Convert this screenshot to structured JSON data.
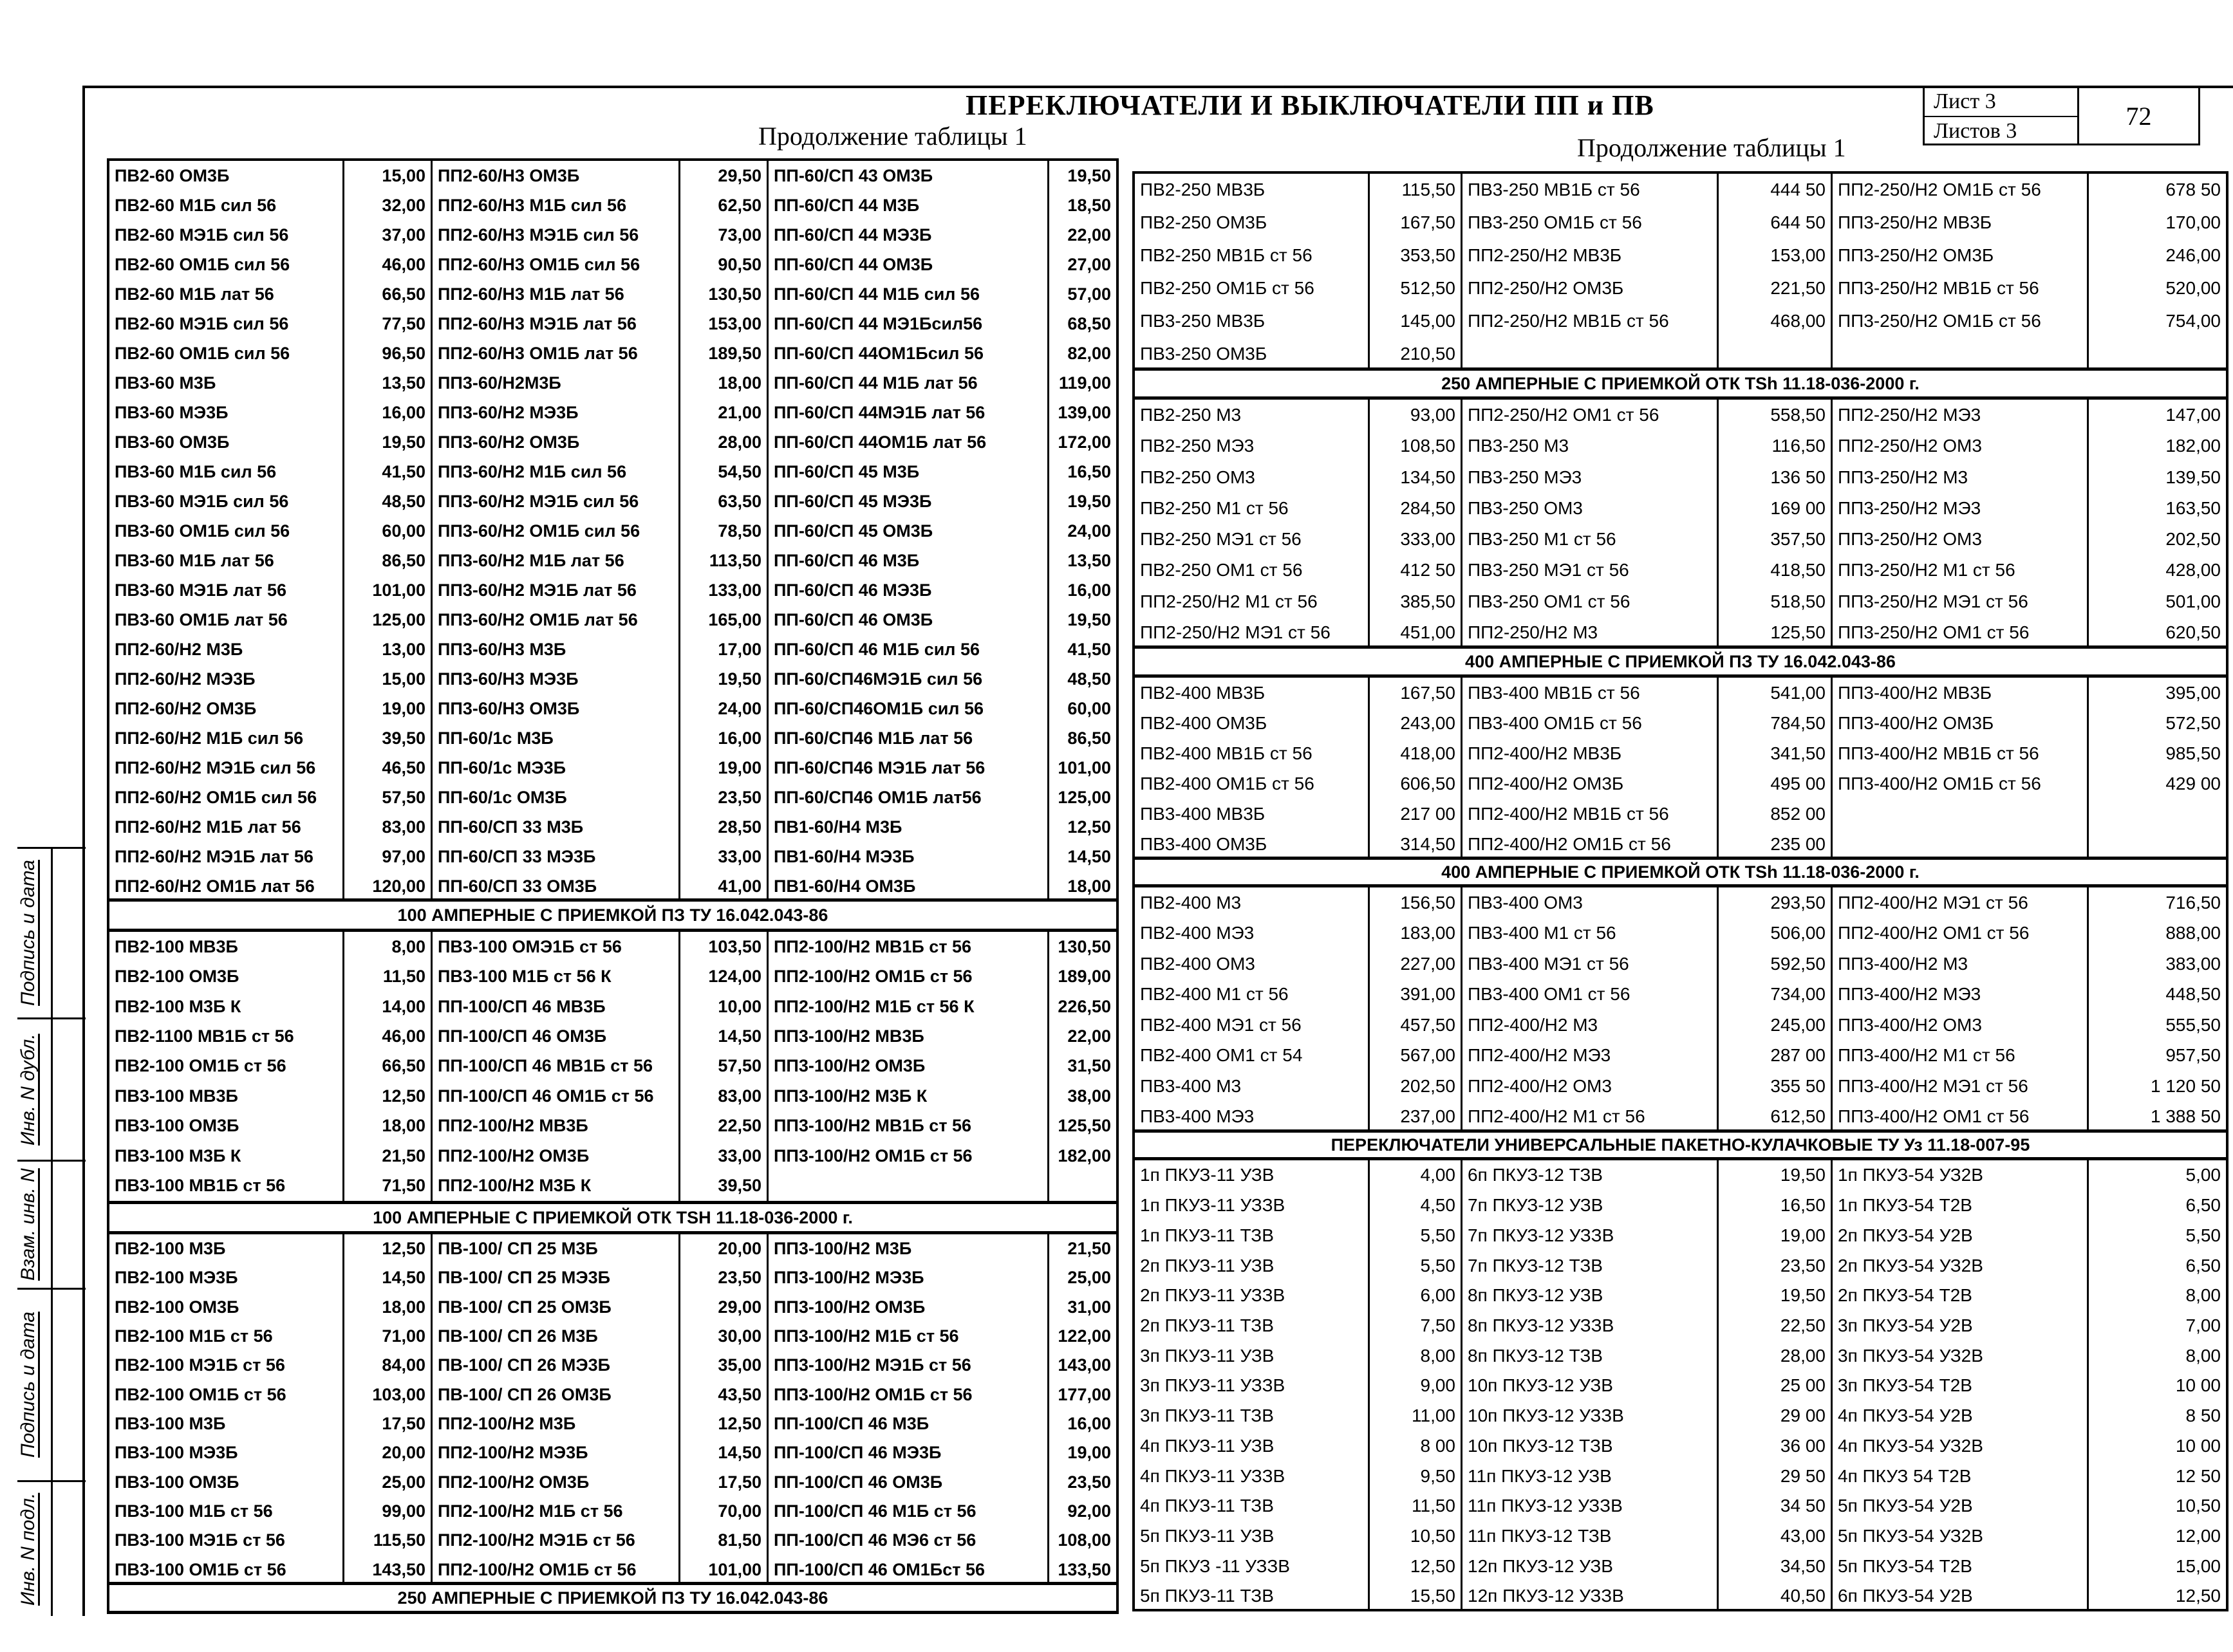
{
  "header": {
    "title": "ПЕРЕКЛЮЧАТЕЛИ И ВЫКЛЮЧАТЕЛИ ПП и ПВ",
    "continuation_left": "Продолжение таблицы 1",
    "continuation_right": "Продолжение таблицы 1",
    "sheet_label": "Лист  3",
    "sheets_label": "Листов  3",
    "page_number": "72"
  },
  "stamp": [
    "Подпись и дата",
    "Инв. N дубл.",
    "Взам. инв. N",
    "Подпись и дата",
    "Инв. N подл."
  ],
  "left": [
    {
      "header": "",
      "rows": [
        [
          "ПВ2-60 ОМ3Б",
          "15,00",
          "ПП2-60/Н3 ОМ3Б",
          "29,50",
          "ПП-60/СП 43 ОМ3Б",
          "19,50"
        ],
        [
          "ПВ2-60 М1Б сил 56",
          "32,00",
          "ПП2-60/Н3 М1Б сил 56",
          "62,50",
          "ПП-60/СП 44 М3Б",
          "18,50"
        ],
        [
          "ПВ2-60 МЭ1Б сил 56",
          "37,00",
          "ПП2-60/Н3 МЭ1Б сил 56",
          "73,00",
          "ПП-60/СП 44 МЭ3Б",
          "22,00"
        ],
        [
          "ПВ2-60 ОМ1Б сил 56",
          "46,00",
          "ПП2-60/Н3 ОМ1Б сил 56",
          "90,50",
          "ПП-60/СП 44 ОМ3Б",
          "27,00"
        ],
        [
          "ПВ2-60 М1Б лат 56",
          "66,50",
          "ПП2-60/Н3 М1Б лат 56",
          "130,50",
          "ПП-60/СП 44 М1Б сил 56",
          "57,00"
        ],
        [
          "ПВ2-60 МЭ1Б сил 56",
          "77,50",
          "ПП2-60/Н3 МЭ1Б лат 56",
          "153,00",
          "ПП-60/СП 44 МЭ1Бсил56",
          "68,50"
        ],
        [
          "ПВ2-60 ОМ1Б сил 56",
          "96,50",
          "ПП2-60/Н3 ОМ1Б лат 56",
          "189,50",
          "ПП-60/СП 44ОМ1Бсил 56",
          "82,00"
        ],
        [
          "ПВ3-60 М3Б",
          "13,50",
          "ПП3-60/Н2М3Б",
          "18,00",
          "ПП-60/СП 44 М1Б лат 56",
          "119,00"
        ],
        [
          "ПВ3-60 МЭ3Б",
          "16,00",
          "ПП3-60/Н2 МЭ3Б",
          "21,00",
          "ПП-60/СП 44МЭ1Б лат 56",
          "139,00"
        ],
        [
          "ПВ3-60 ОМ3Б",
          "19,50",
          "ПП3-60/Н2 ОМ3Б",
          "28,00",
          "ПП-60/СП 44ОМ1Б лат 56",
          "172,00"
        ],
        [
          "ПВ3-60 М1Б сил 56",
          "41,50",
          "ПП3-60/Н2 М1Б сил 56",
          "54,50",
          "ПП-60/СП 45 М3Б",
          "16,50"
        ],
        [
          "ПВ3-60 МЭ1Б сил 56",
          "48,50",
          "ПП3-60/Н2 МЭ1Б сил 56",
          "63,50",
          "ПП-60/СП 45 МЭ3Б",
          "19,50"
        ],
        [
          "ПВ3-60 ОМ1Б сил 56",
          "60,00",
          "ПП3-60/Н2 ОМ1Б сил 56",
          "78,50",
          "ПП-60/СП 45 ОМ3Б",
          "24,00"
        ],
        [
          "ПВ3-60 М1Б лат 56",
          "86,50",
          "ПП3-60/Н2 М1Б лат 56",
          "113,50",
          "ПП-60/СП 46 М3Б",
          "13,50"
        ],
        [
          "ПВ3-60 МЭ1Б лат 56",
          "101,00",
          "ПП3-60/Н2 МЭ1Б лат 56",
          "133,00",
          "ПП-60/СП 46 МЭ3Б",
          "16,00"
        ],
        [
          "ПВ3-60 ОМ1Б лат 56",
          "125,00",
          "ПП3-60/Н2 ОМ1Б лат 56",
          "165,00",
          "ПП-60/СП 46 ОМ3Б",
          "19,50"
        ],
        [
          "ПП2-60/Н2 М3Б",
          "13,00",
          "ПП3-60/Н3 М3Б",
          "17,00",
          "ПП-60/СП 46 М1Б сил 56",
          "41,50"
        ],
        [
          "ПП2-60/Н2 МЭ3Б",
          "15,00",
          "ПП3-60/Н3 МЭ3Б",
          "19,50",
          "ПП-60/СП46МЭ1Б сил 56",
          "48,50"
        ],
        [
          "ПП2-60/Н2 ОМ3Б",
          "19,00",
          "ПП3-60/Н3 ОМ3Б",
          "24,00",
          "ПП-60/СП46ОМ1Б сил 56",
          "60,00"
        ],
        [
          "ПП2-60/Н2 М1Б сил 56",
          "39,50",
          "ПП-60/1с М3Б",
          "16,00",
          "ПП-60/СП46 М1Б лат 56",
          "86,50"
        ],
        [
          "ПП2-60/Н2 МЭ1Б сил 56",
          "46,50",
          "ПП-60/1с МЭ3Б",
          "19,00",
          "ПП-60/СП46 МЭ1Б лат 56",
          "101,00"
        ],
        [
          "ПП2-60/Н2 ОМ1Б сил 56",
          "57,50",
          "ПП-60/1с ОМ3Б",
          "23,50",
          "ПП-60/СП46 ОМ1Б лат56",
          "125,00"
        ],
        [
          "ПП2-60/Н2 М1Б лат 56",
          "83,00",
          "ПП-60/СП 33 М3Б",
          "28,50",
          "ПВ1-60/Н4 М3Б",
          "12,50"
        ],
        [
          "ПП2-60/Н2 МЭ1Б лат 56",
          "97,00",
          "ПП-60/СП 33 МЭ3Б",
          "33,00",
          "ПВ1-60/Н4 МЭ3Б",
          "14,50"
        ],
        [
          "ПП2-60/Н2 ОМ1Б лат 56",
          "120,00",
          "ПП-60/СП 33  ОМ3Б",
          "41,00",
          "ПВ1-60/Н4 ОМ3Б",
          "18,00"
        ]
      ]
    },
    {
      "header": "100 АМПЕРНЫЕ С ПРИЕМКОЙ  ПЗ  ТУ 16.042.043-86",
      "rows": [
        [
          "ПВ2-100 МВ3Б",
          "8,00",
          "ПВ3-100 ОМЭ1Б ст 56",
          "103,50",
          "ПП2-100/Н2 МВ1Б ст 56",
          "130,50"
        ],
        [
          "ПВ2-100 ОМ3Б",
          "11,50",
          "ПВ3-100 М1Б ст 56 К",
          "124,00",
          "ПП2-100/Н2 ОМ1Б ст 56",
          "189,00"
        ],
        [
          "ПВ2-100 М3Б К",
          "14,00",
          "ПП-100/СП 46 МВ3Б",
          "10,00",
          "ПП2-100/Н2 М1Б ст 56 К",
          "226,50"
        ],
        [
          "ПВ2-1100 МВ1Б ст 56",
          "46,00",
          "ПП-100/СП 46 ОМ3Б",
          "14,50",
          "ПП3-100/Н2 МВ3Б",
          "22,00"
        ],
        [
          "ПВ2-100 ОМ1Б ст 56",
          "66,50",
          "ПП-100/СП 46 МВ1Б ст 56",
          "57,50",
          "ПП3-100/Н2 ОМ3Б",
          "31,50"
        ],
        [
          "ПВ3-100 МВ3Б",
          "12,50",
          "ПП-100/СП 46 ОМ1Б ст 56",
          "83,00",
          "ПП3-100/Н2 М3Б К",
          "38,00"
        ],
        [
          "ПВ3-100 ОМ3Б",
          "18,00",
          "ПП2-100/Н2 МВ3Б",
          "22,50",
          "ПП3-100/Н2 МВ1Б ст 56",
          "125,50"
        ],
        [
          "ПВ3-100 М3Б К",
          "21,50",
          "ПП2-100/Н2 ОМ3Б",
          "33,00",
          "ПП3-100/Н2 ОМ1Б ст 56",
          "182,00"
        ],
        [
          "ПВ3-100 МВ1Б ст 56",
          "71,50",
          "ПП2-100/Н2 М3Б К",
          "39,50",
          "",
          ""
        ]
      ]
    },
    {
      "header": "100 АМПЕРНЫЕ С ПРИЕМКОЙ ОТК  TSH 11.18-036-2000 г.",
      "rows": [
        [
          "ПВ2-100 М3Б",
          "12,50",
          "ПВ-100/ СП 25 М3Б",
          "20,00",
          "ПП3-100/Н2 М3Б",
          "21,50"
        ],
        [
          "ПВ2-100 МЭ3Б",
          "14,50",
          "ПВ-100/ СП 25 МЭ3Б",
          "23,50",
          "ПП3-100/Н2 МЭ3Б",
          "25,00"
        ],
        [
          "ПВ2-100 ОМ3Б",
          "18,00",
          "ПВ-100/ СП 25 ОМ3Б",
          "29,00",
          "ПП3-100/Н2 ОМ3Б",
          "31,00"
        ],
        [
          "ПВ2-100 М1Б ст 56",
          "71,00",
          "ПВ-100/ СП 26 М3Б",
          "30,00",
          "ПП3-100/Н2 М1Б ст 56",
          "122,00"
        ],
        [
          "ПВ2-100 МЭ1Б ст 56",
          "84,00",
          "ПВ-100/ СП 26 МЭ3Б",
          "35,00",
          "ПП3-100/Н2 МЭ1Б ст 56",
          "143,00"
        ],
        [
          "ПВ2-100 ОМ1Б ст 56",
          "103,00",
          "ПВ-100/ СП 26 ОМ3Б",
          "43,50",
          "ПП3-100/Н2 ОМ1Б ст 56",
          "177,00"
        ],
        [
          "ПВ3-100 М3Б",
          "17,50",
          "ПП2-100/Н2 М3Б",
          "12,50",
          "ПП-100/СП 46 М3Б",
          "16,00"
        ],
        [
          "ПВ3-100 МЭ3Б",
          "20,00",
          "ПП2-100/Н2 МЭ3Б",
          "14,50",
          "ПП-100/СП 46 МЭ3Б",
          "19,00"
        ],
        [
          "ПВ3-100 ОМ3Б",
          "25,00",
          "ПП2-100/Н2 ОМ3Б",
          "17,50",
          "ПП-100/СП 46 ОМ3Б",
          "23,50"
        ],
        [
          "ПВ3-100 М1Б ст 56",
          "99,00",
          "ПП2-100/Н2 М1Б ст 56",
          "70,00",
          "ПП-100/СП 46 М1Б ст 56",
          "92,00"
        ],
        [
          "ПВ3-100 МЭ1Б ст 56",
          "115,50",
          "ПП2-100/Н2 МЭ1Б ст 56",
          "81,50",
          "ПП-100/СП 46 МЭ6 ст 56",
          "108,00"
        ],
        [
          "ПВ3-100 ОМ1Б ст 56",
          "143,50",
          "ПП2-100/Н2 ОМ1Б ст 56",
          "101,00",
          "ПП-100/СП 46 ОМ1Бст 56",
          "133,50"
        ]
      ]
    },
    {
      "header": "250 АМПЕРНЫЕ С ПРИЕМКОЙ  ПЗ  ТУ 16.042.043-86",
      "rows": []
    }
  ],
  "right": [
    {
      "header": "",
      "rows": [
        [
          "ПВ2-250 МВ3Б",
          "115,50",
          "ПВ3-250 МВ1Б ст 56",
          "444 50",
          "ПП2-250/Н2 ОМ1Б ст 56",
          "678 50"
        ],
        [
          "ПВ2-250 ОМ3Б",
          "167,50",
          "ПВ3-250 ОМ1Б ст 56",
          "644 50",
          "ПП3-250/Н2 МВ3Б",
          "170,00"
        ],
        [
          "ПВ2-250 МВ1Б ст 56",
          "353,50",
          "ПП2-250/Н2 МВ3Б",
          "153,00",
          "ПП3-250/Н2 ОМ3Б",
          "246,00"
        ],
        [
          "ПВ2-250 ОМ1Б ст 56",
          "512,50",
          "ПП2-250/Н2 ОМ3Б",
          "221,50",
          "ПП3-250/Н2 МВ1Б ст 56",
          "520,00"
        ],
        [
          "ПВ3-250 МВ3Б",
          "145,00",
          "ПП2-250/Н2 МВ1Б ст 56",
          "468,00",
          "ПП3-250/Н2 ОМ1Б ст 56",
          "754,00"
        ],
        [
          "ПВ3-250 ОМ3Б",
          "210,50",
          "",
          "",
          "",
          ""
        ]
      ]
    },
    {
      "header": "250 АМПЕРНЫЕ С ПРИЕМКОЙ ОТК TSh 11.18-036-2000 г.",
      "rows": [
        [
          "ПВ2-250 М3",
          "93,00",
          "ПП2-250/Н2 ОМ1 ст 56",
          "558,50",
          "ПП2-250/Н2 МЭ3",
          "147,00"
        ],
        [
          "ПВ2-250 МЭ3",
          "108,50",
          "ПВ3-250 М3",
          "116,50",
          "ПП2-250/Н2 ОМ3",
          "182,00"
        ],
        [
          "ПВ2-250 ОМ3",
          "134,50",
          "ПВ3-250 МЭ3",
          "136 50",
          "ПП3-250/Н2 М3",
          "139,50"
        ],
        [
          "ПВ2-250 М1 ст 56",
          "284,50",
          "ПВ3-250 ОМ3",
          "169 00",
          "ПП3-250/Н2 МЭ3",
          "163,50"
        ],
        [
          "ПВ2-250 МЭ1 ст 56",
          "333,00",
          "ПВ3-250 М1 ст 56",
          "357,50",
          "ПП3-250/Н2 ОМ3",
          "202,50"
        ],
        [
          "ПВ2-250 ОМ1 ст 56",
          "412 50",
          "ПВ3-250 МЭ1 ст 56",
          "418,50",
          "ПП3-250/Н2 М1 ст 56",
          "428,00"
        ],
        [
          "ПП2-250/Н2 М1 ст 56",
          "385,50",
          "ПВ3-250 ОМ1 ст 56",
          "518,50",
          "ПП3-250/Н2 МЭ1 ст 56",
          "501,00"
        ],
        [
          "ПП2-250/Н2 МЭ1 ст 56",
          "451,00",
          "ПП2-250/Н2 М3",
          "125,50",
          "ПП3-250/Н2 ОМ1 ст 56",
          "620,50"
        ]
      ]
    },
    {
      "header": "400 АМПЕРНЫЕ С ПРИЕМКОЙ ПЗ ТУ 16.042.043-86",
      "rows": [
        [
          "ПВ2-400 МВ3Б",
          "167,50",
          "ПВ3-400 МВ1Б ст 56",
          "541,00",
          "ПП3-400/Н2 МВ3Б",
          "395,00"
        ],
        [
          "ПВ2-400 ОМ3Б",
          "243,00",
          "ПВ3-400 ОМ1Б ст 56",
          "784,50",
          "ПП3-400/Н2 ОМ3Б",
          "572,50"
        ],
        [
          "ПВ2-400 МВ1Б ст 56",
          "418,00",
          "ПП2-400/Н2 МВ3Б",
          "341,50",
          "ПП3-400/Н2 МВ1Б ст 56",
          "985,50"
        ],
        [
          "ПВ2-400 ОМ1Б ст 56",
          "606,50",
          "ПП2-400/Н2 ОМ3Б",
          "495 00",
          "ПП3-400/Н2 ОМ1Б ст 56",
          "429 00"
        ],
        [
          "ПВ3-400 МВ3Б",
          "217 00",
          "ПП2-400/Н2 МВ1Б ст 56",
          "852 00",
          "",
          ""
        ],
        [
          "ПВ3-400 ОМ3Б",
          "314,50",
          "ПП2-400/Н2 ОМ1Б ст 56",
          "235 00",
          "",
          ""
        ]
      ]
    },
    {
      "header": "400 АМПЕРНЫЕ С ПРИЕМКОЙ ОТК  TSh 11.18-036-2000 г.",
      "rows": [
        [
          "ПВ2-400 М3",
          "156,50",
          "ПВ3-400 ОМ3",
          "293,50",
          "ПП2-400/Н2 МЭ1 ст 56",
          "716,50"
        ],
        [
          "ПВ2-400 МЭ3",
          "183,00",
          "ПВ3-400 М1 ст 56",
          "506,00",
          "ПП2-400/Н2 ОМ1 ст 56",
          "888,00"
        ],
        [
          "ПВ2-400 ОМ3",
          "227,00",
          "ПВ3-400 МЭ1 ст 56",
          "592,50",
          "ПП3-400/Н2 М3",
          "383,00"
        ],
        [
          "ПВ2-400 М1 ст 56",
          "391,00",
          "ПВ3-400 ОМ1 ст 56",
          "734,00",
          "ПП3-400/Н2 МЭ3",
          "448,50"
        ],
        [
          "ПВ2-400 МЭ1 ст 56",
          "457,50",
          "ПП2-400/Н2 М3",
          "245,00",
          "ПП3-400/Н2 ОМ3",
          "555,50"
        ],
        [
          "ПВ2-400 ОМ1 ст 54",
          "567,00",
          "ПП2-400/Н2 МЭ3",
          "287 00",
          "ПП3-400/Н2 М1 ст 56",
          "957,50"
        ],
        [
          "ПВ3-400 М3",
          "202,50",
          "ПП2-400/Н2 ОМ3",
          "355 50",
          "ПП3-400/Н2 МЭ1 ст 56",
          "1 120 50"
        ],
        [
          "ПВ3-400 МЭ3",
          "237,00",
          "ПП2-400/Н2 М1 ст 56",
          "612,50",
          "ПП3-400/Н2 ОМ1 ст 56",
          "1 388 50"
        ]
      ]
    },
    {
      "header": "ПЕРЕКЛЮЧАТЕЛИ УНИВЕРСАЛЬНЫЕ ПАКЕТНО-КУЛАЧКОВЫЕ  ТУ Уз 11.18-007-95",
      "rows": [
        [
          "1п ПКУЗ-11 УЗВ",
          "4,00",
          "6п  ПКУЗ-12 ТЗВ",
          "19,50",
          "1п  ПКУЗ-54 УЗ2В",
          "5,00"
        ],
        [
          "1п ПКУЗ-11 УЗЗВ",
          "4,50",
          "7п ПКУЗ-12 УЗВ",
          "16,50",
          "1п  ПКУЗ-54 Т2В",
          "6,50"
        ],
        [
          "1п ПКУЗ-11 ТЗВ",
          "5,50",
          "7п ПКУЗ-12 УЗЗВ",
          "19,00",
          "2п  ПКУЗ-54 У2В",
          "5,50"
        ],
        [
          "2п ПКУЗ-11 УЗВ",
          "5,50",
          "7п ПКУЗ-12 ТЗВ",
          "23,50",
          "2п ПКУЗ-54 УЗ2В",
          "6,50"
        ],
        [
          "2п ПКУЗ-11 УЗЗВ",
          "6,00",
          "8п ПКУЗ-12 УЗВ",
          "19,50",
          "2п ПКУЗ-54 Т2В",
          "8,00"
        ],
        [
          "2п ПКУЗ-11 ТЗВ",
          "7,50",
          "8п ПКУЗ-12 УЗЗВ",
          "22,50",
          "3п ПКУЗ-54 У2В",
          "7,00"
        ],
        [
          "3п ПКУЗ-11 УЗВ",
          "8,00",
          "8п ПКУЗ-12 ТЗВ",
          "28,00",
          "3п ПКУЗ-54 УЗ2В",
          "8,00"
        ],
        [
          "3п ПКУЗ-11 УЗЗВ",
          "9,00",
          "10п ПКУЗ-12 УЗВ",
          "25 00",
          "3п ПКУЗ-54 Т2В",
          "10 00"
        ],
        [
          "3п ПКУЗ-11 ТЗВ",
          "11,00",
          "10п ПКУЗ-12 УЗЗВ",
          "29 00",
          "4п ПКУЗ-54 У2В",
          "8 50"
        ],
        [
          "4п ПКУЗ-11 УЗВ",
          "8 00",
          "10п ПКУЗ-12 ТЗВ",
          "36 00",
          "4п ПКУЗ-54 УЗ2В",
          "10 00"
        ],
        [
          "4п ПКУЗ-11 УЗЗВ",
          "9,50",
          "11п ПКУЗ-12 УЗВ",
          "29 50",
          "4п ПКУЗ 54 Т2В",
          "12 50"
        ],
        [
          "4п ПКУЗ-11 ТЗВ",
          "11,50",
          "11п ПКУЗ-12 УЗЗВ",
          "34 50",
          "5п ПКУЗ-54 У2В",
          "10,50"
        ],
        [
          "5п ПКУЗ-11 УЗВ",
          "10,50",
          "11п ПКУЗ-12 ТЗВ",
          "43,00",
          "5п ПКУЗ-54 УЗ2В",
          "12,00"
        ],
        [
          "5п ПКУЗ -11 УЗЗВ",
          "12,50",
          "12п ПКУЗ-12 УЗВ",
          "34,50",
          "5п ПКУЗ-54 Т2В",
          "15,00"
        ],
        [
          "5п ПКУЗ-11 ТЗВ",
          "15,50",
          "12п ПКУЗ-12 УЗЗВ",
          "40,50",
          "6п ПКУЗ-54 У2В",
          "12,50"
        ]
      ]
    }
  ]
}
